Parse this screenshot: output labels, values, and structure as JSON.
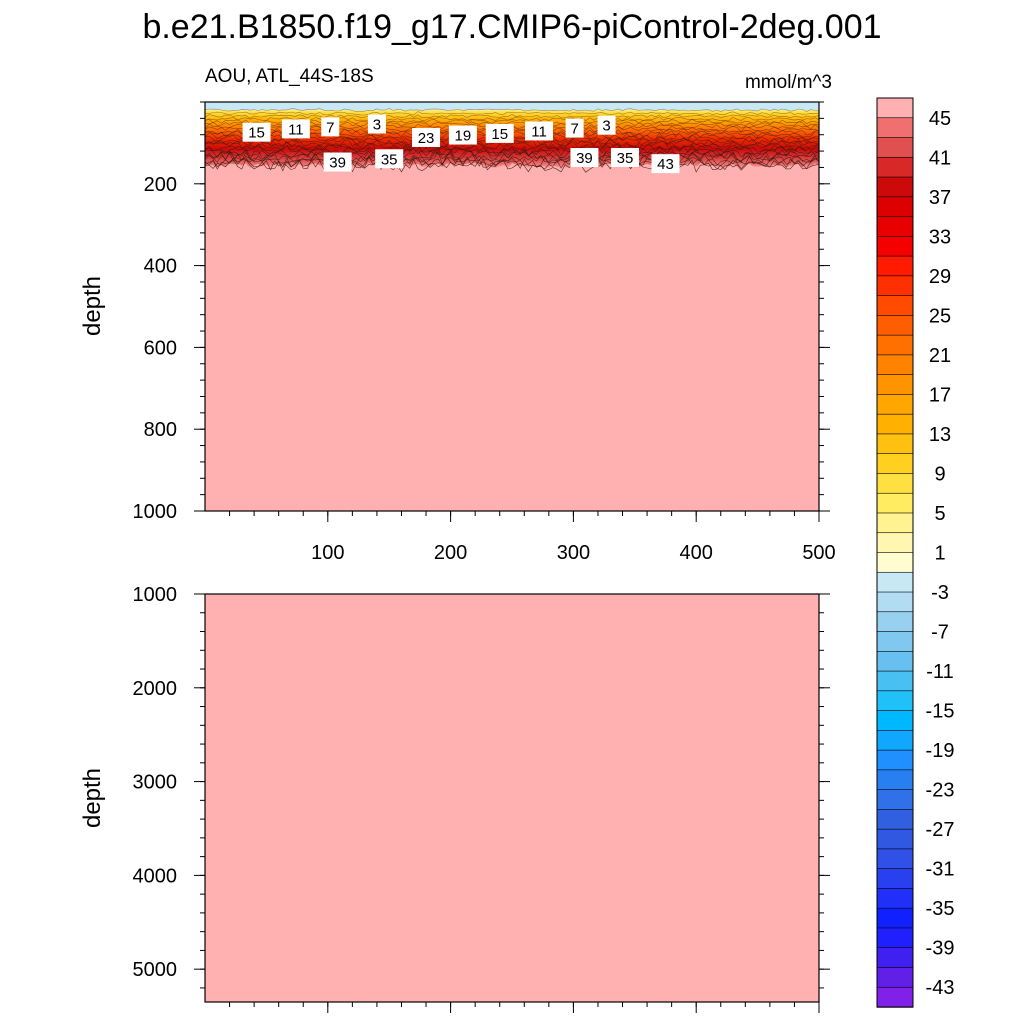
{
  "title": "b.e21.B1850.f19_g17.CMIP6-piControl-2deg.001",
  "panel_left_label": "AOU, ATL_44S-18S",
  "panel_right_label": "mmol/m^3",
  "chart_data": [
    {
      "type": "heatmap",
      "panel": "upper",
      "ylabel": "depth",
      "xlim": [
        0,
        500
      ],
      "ylim": [
        1000,
        0
      ],
      "x_ticks": [
        100,
        200,
        300,
        400,
        500
      ],
      "y_ticks": [
        200,
        400,
        600,
        800,
        1000
      ],
      "surface_layer_depth": [
        0,
        20
      ],
      "gradient_layer_depth": [
        20,
        160
      ],
      "deep_value_min": 45,
      "contour_labels": [
        {
          "value": "15",
          "x": 42,
          "depth": 75
        },
        {
          "value": "11",
          "x": 74,
          "depth": 67
        },
        {
          "value": "7",
          "x": 102,
          "depth": 62
        },
        {
          "value": "3",
          "x": 140,
          "depth": 55
        },
        {
          "value": "23",
          "x": 180,
          "depth": 88
        },
        {
          "value": "19",
          "x": 210,
          "depth": 82
        },
        {
          "value": "15",
          "x": 240,
          "depth": 78
        },
        {
          "value": "11",
          "x": 272,
          "depth": 72
        },
        {
          "value": "7",
          "x": 301,
          "depth": 65
        },
        {
          "value": "3",
          "x": 327,
          "depth": 58
        },
        {
          "value": "39",
          "x": 108,
          "depth": 148
        },
        {
          "value": "35",
          "x": 150,
          "depth": 140
        },
        {
          "value": "39",
          "x": 309,
          "depth": 137
        },
        {
          "value": "35",
          "x": 342,
          "depth": 137
        },
        {
          "value": "43",
          "x": 375,
          "depth": 152
        }
      ]
    },
    {
      "type": "heatmap",
      "panel": "lower",
      "ylabel": "depth",
      "xlim": [
        0,
        500
      ],
      "ylim": [
        5350,
        1000
      ],
      "y_ticks": [
        1000,
        2000,
        3000,
        4000,
        5000
      ],
      "deep_value_min": 45
    }
  ],
  "colorbar": {
    "tick_labels": [
      "45",
      "41",
      "37",
      "33",
      "29",
      "25",
      "21",
      "17",
      "13",
      "9",
      "5",
      "1",
      "-3",
      "-7",
      "-11",
      "-15",
      "-19",
      "-23",
      "-27",
      "-31",
      "-35",
      "-39",
      "-43"
    ],
    "colors": [
      "#ffb0b0",
      "#f07070",
      "#e05050",
      "#d82828",
      "#cc0a0a",
      "#dc0000",
      "#e80000",
      "#f40000",
      "#ff1a00",
      "#ff3000",
      "#ff4a00",
      "#ff5e00",
      "#ff7000",
      "#ff8200",
      "#ff9400",
      "#ffa600",
      "#ffb000",
      "#ffc010",
      "#ffd020",
      "#ffe040",
      "#ffec60",
      "#fff290",
      "#fff7b0",
      "#fffcd0",
      "#c8e8f6",
      "#b2dcf2",
      "#98d0f0",
      "#80c8f0",
      "#68c0f0",
      "#48c0f2",
      "#20c0f8",
      "#00b8ff",
      "#10a8ff",
      "#2090ff",
      "#2880f0",
      "#3070e8",
      "#3060e0",
      "#3058e0",
      "#3050e8",
      "#2840f0",
      "#2030f8",
      "#1020ff",
      "#2020ff",
      "#4020f0",
      "#6020e8",
      "#8020e8"
    ]
  }
}
